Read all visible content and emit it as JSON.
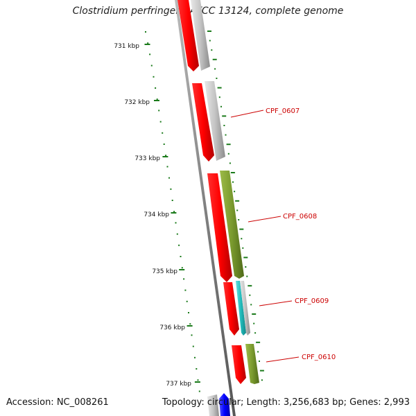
{
  "title": "Clostridium perfringens ATCC 13124, complete genome",
  "footer": {
    "accession": "Accession: NC_008261",
    "topology": "Topology: circular; Length: 3,256,683 bp; Genes: 2,993"
  },
  "scale_labels": [
    "731 kbp",
    "732 kbp",
    "733 kbp",
    "734 kbp",
    "735 kbp",
    "736 kbp",
    "737 kbp"
  ],
  "gene_labels": [
    "CPF_0607",
    "CPF_0608",
    "CPF_0609",
    "CPF_0610"
  ],
  "colors": {
    "cds": "#ff0000",
    "gray": "#c0c0c0",
    "olive": "#7a9a2e",
    "teal": "#33cccc",
    "blue": "#0000ff",
    "backbone": "#808080",
    "tick": "#1a7a1a",
    "label": "#cc0000"
  }
}
